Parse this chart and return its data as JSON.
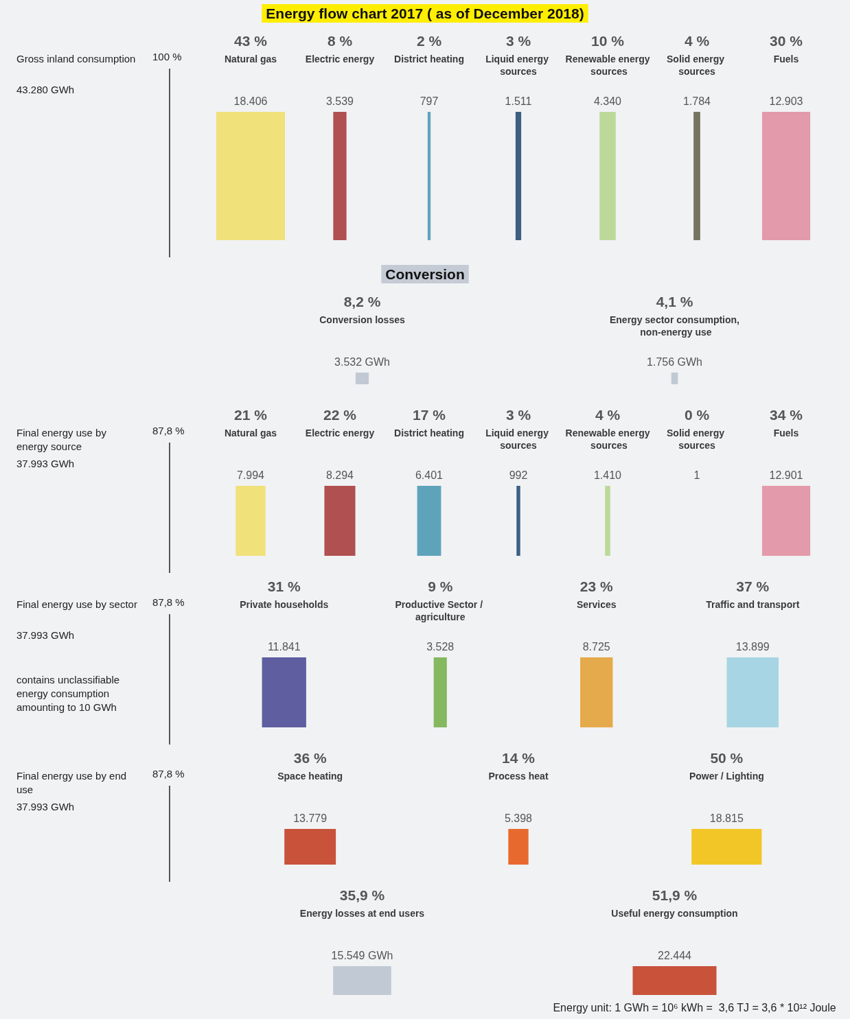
{
  "chart_data": [
    {
      "type": "other",
      "title": "Energy flow chart 2017 ( as of December 2018)",
      "subtitle": "Gross inland consumption",
      "annotations": [
        "100 %",
        "43.280 GWh"
      ],
      "categories": [
        "Natural gas",
        "Electric energy",
        "District heating",
        "Liquid energy sources",
        "Renewable energy sources",
        "Solid energy sources",
        "Fuels"
      ],
      "colors": [
        "#f0e17a",
        "#b05050",
        "#5fa3bb",
        "#3c5f82",
        "#bcd99a",
        "#76735e",
        "#e39aaa"
      ],
      "series": [
        {
          "values": [
            43,
            8,
            2,
            3,
            10,
            4,
            30
          ],
          "value_labels": [
            "43 %",
            "8 %",
            "2 %",
            "3 %",
            "10 %",
            "4 %",
            "30 %"
          ]
        },
        {
          "values": [
            18406,
            3539,
            797,
            1511,
            4340,
            1784,
            12903
          ],
          "value_labels": [
            "18.406",
            "3.539",
            "797",
            "1.511",
            "4.340",
            "1.784",
            "12.903"
          ]
        }
      ]
    },
    {
      "type": "other",
      "title": "Conversion",
      "categories": [
        "Conversion losses",
        "Energy sector consumption, non-energy use"
      ],
      "colors": [
        "#c0c9d4",
        "#c0c9d4"
      ],
      "series": [
        {
          "values": [
            8.2,
            4.1
          ],
          "value_labels": [
            "8,2 %",
            "4,1 %"
          ]
        },
        {
          "values": [
            3532,
            1756
          ],
          "value_labels": [
            "3.532 GWh",
            "1.756 GWh"
          ]
        }
      ]
    },
    {
      "type": "other",
      "subtitle": "Final energy use by energy source",
      "annotations": [
        "87,8 %",
        "37.993 GWh"
      ],
      "categories": [
        "Natural gas",
        "Electric energy",
        "District heating",
        "Liquid energy sources",
        "Renewable energy sources",
        "Solid energy sources",
        "Fuels"
      ],
      "colors": [
        "#f0e17a",
        "#b05050",
        "#5fa3bb",
        "#3c5f82",
        "#bcd99a",
        "#76735e",
        "#e39aaa"
      ],
      "series": [
        {
          "values": [
            21,
            22,
            17,
            3,
            4,
            0,
            34
          ],
          "value_labels": [
            "21 %",
            "22 %",
            "17 %",
            "3 %",
            "4 %",
            "0 %",
            "34 %"
          ]
        },
        {
          "values": [
            7994,
            8294,
            6401,
            992,
            1410,
            1,
            12901
          ],
          "value_labels": [
            "7.994",
            "8.294",
            "6.401",
            "992",
            "1.410",
            "1",
            "12.901"
          ]
        }
      ]
    },
    {
      "type": "other",
      "subtitle": "Final energy use by sector",
      "annotations": [
        "87,8 %",
        "37.993 GWh",
        "contains unclassifiable energy consumption amounting to 10 GWh"
      ],
      "categories": [
        "Private households",
        "Productive Sector / agriculture",
        "Services",
        "Traffic and transport"
      ],
      "colors": [
        "#5f5ea0",
        "#86b95f",
        "#e5aa4c",
        "#a7d5e3"
      ],
      "series": [
        {
          "values": [
            31,
            9,
            23,
            37
          ],
          "value_labels": [
            "31 %",
            "9 %",
            "23 %",
            "37 %"
          ]
        },
        {
          "values": [
            11841,
            3528,
            8725,
            13899
          ],
          "value_labels": [
            "11.841",
            "3.528",
            "8.725",
            "13.899"
          ]
        }
      ]
    },
    {
      "type": "other",
      "subtitle": "Final energy use by end use",
      "annotations": [
        "87,8 %",
        "37.993 GWh"
      ],
      "categories": [
        "Space heating",
        "Process heat",
        "Power / Lighting"
      ],
      "colors": [
        "#c8523a",
        "#e8692e",
        "#f2c627"
      ],
      "series": [
        {
          "values": [
            36,
            14,
            50
          ],
          "value_labels": [
            "36 %",
            "14 %",
            "50 %"
          ]
        },
        {
          "values": [
            13779,
            5398,
            18815
          ],
          "value_labels": [
            "13.779",
            "5.398",
            "18.815"
          ]
        }
      ]
    },
    {
      "type": "other",
      "annotations": [
        "Energy unit: 1 GWh = 10⁶ kWh =  3,6 TJ = 3,6 * 10¹² Joule"
      ],
      "categories": [
        "Energy losses at end users",
        "Useful energy consumption"
      ],
      "colors": [
        "#c0c9d4",
        "#c8523a"
      ],
      "series": [
        {
          "values": [
            35.9,
            51.9
          ],
          "value_labels": [
            "35,9 %",
            "51,9 %"
          ]
        },
        {
          "values": [
            15549,
            22444
          ],
          "value_labels": [
            "15.549 GWh",
            "22.444"
          ]
        }
      ]
    }
  ]
}
